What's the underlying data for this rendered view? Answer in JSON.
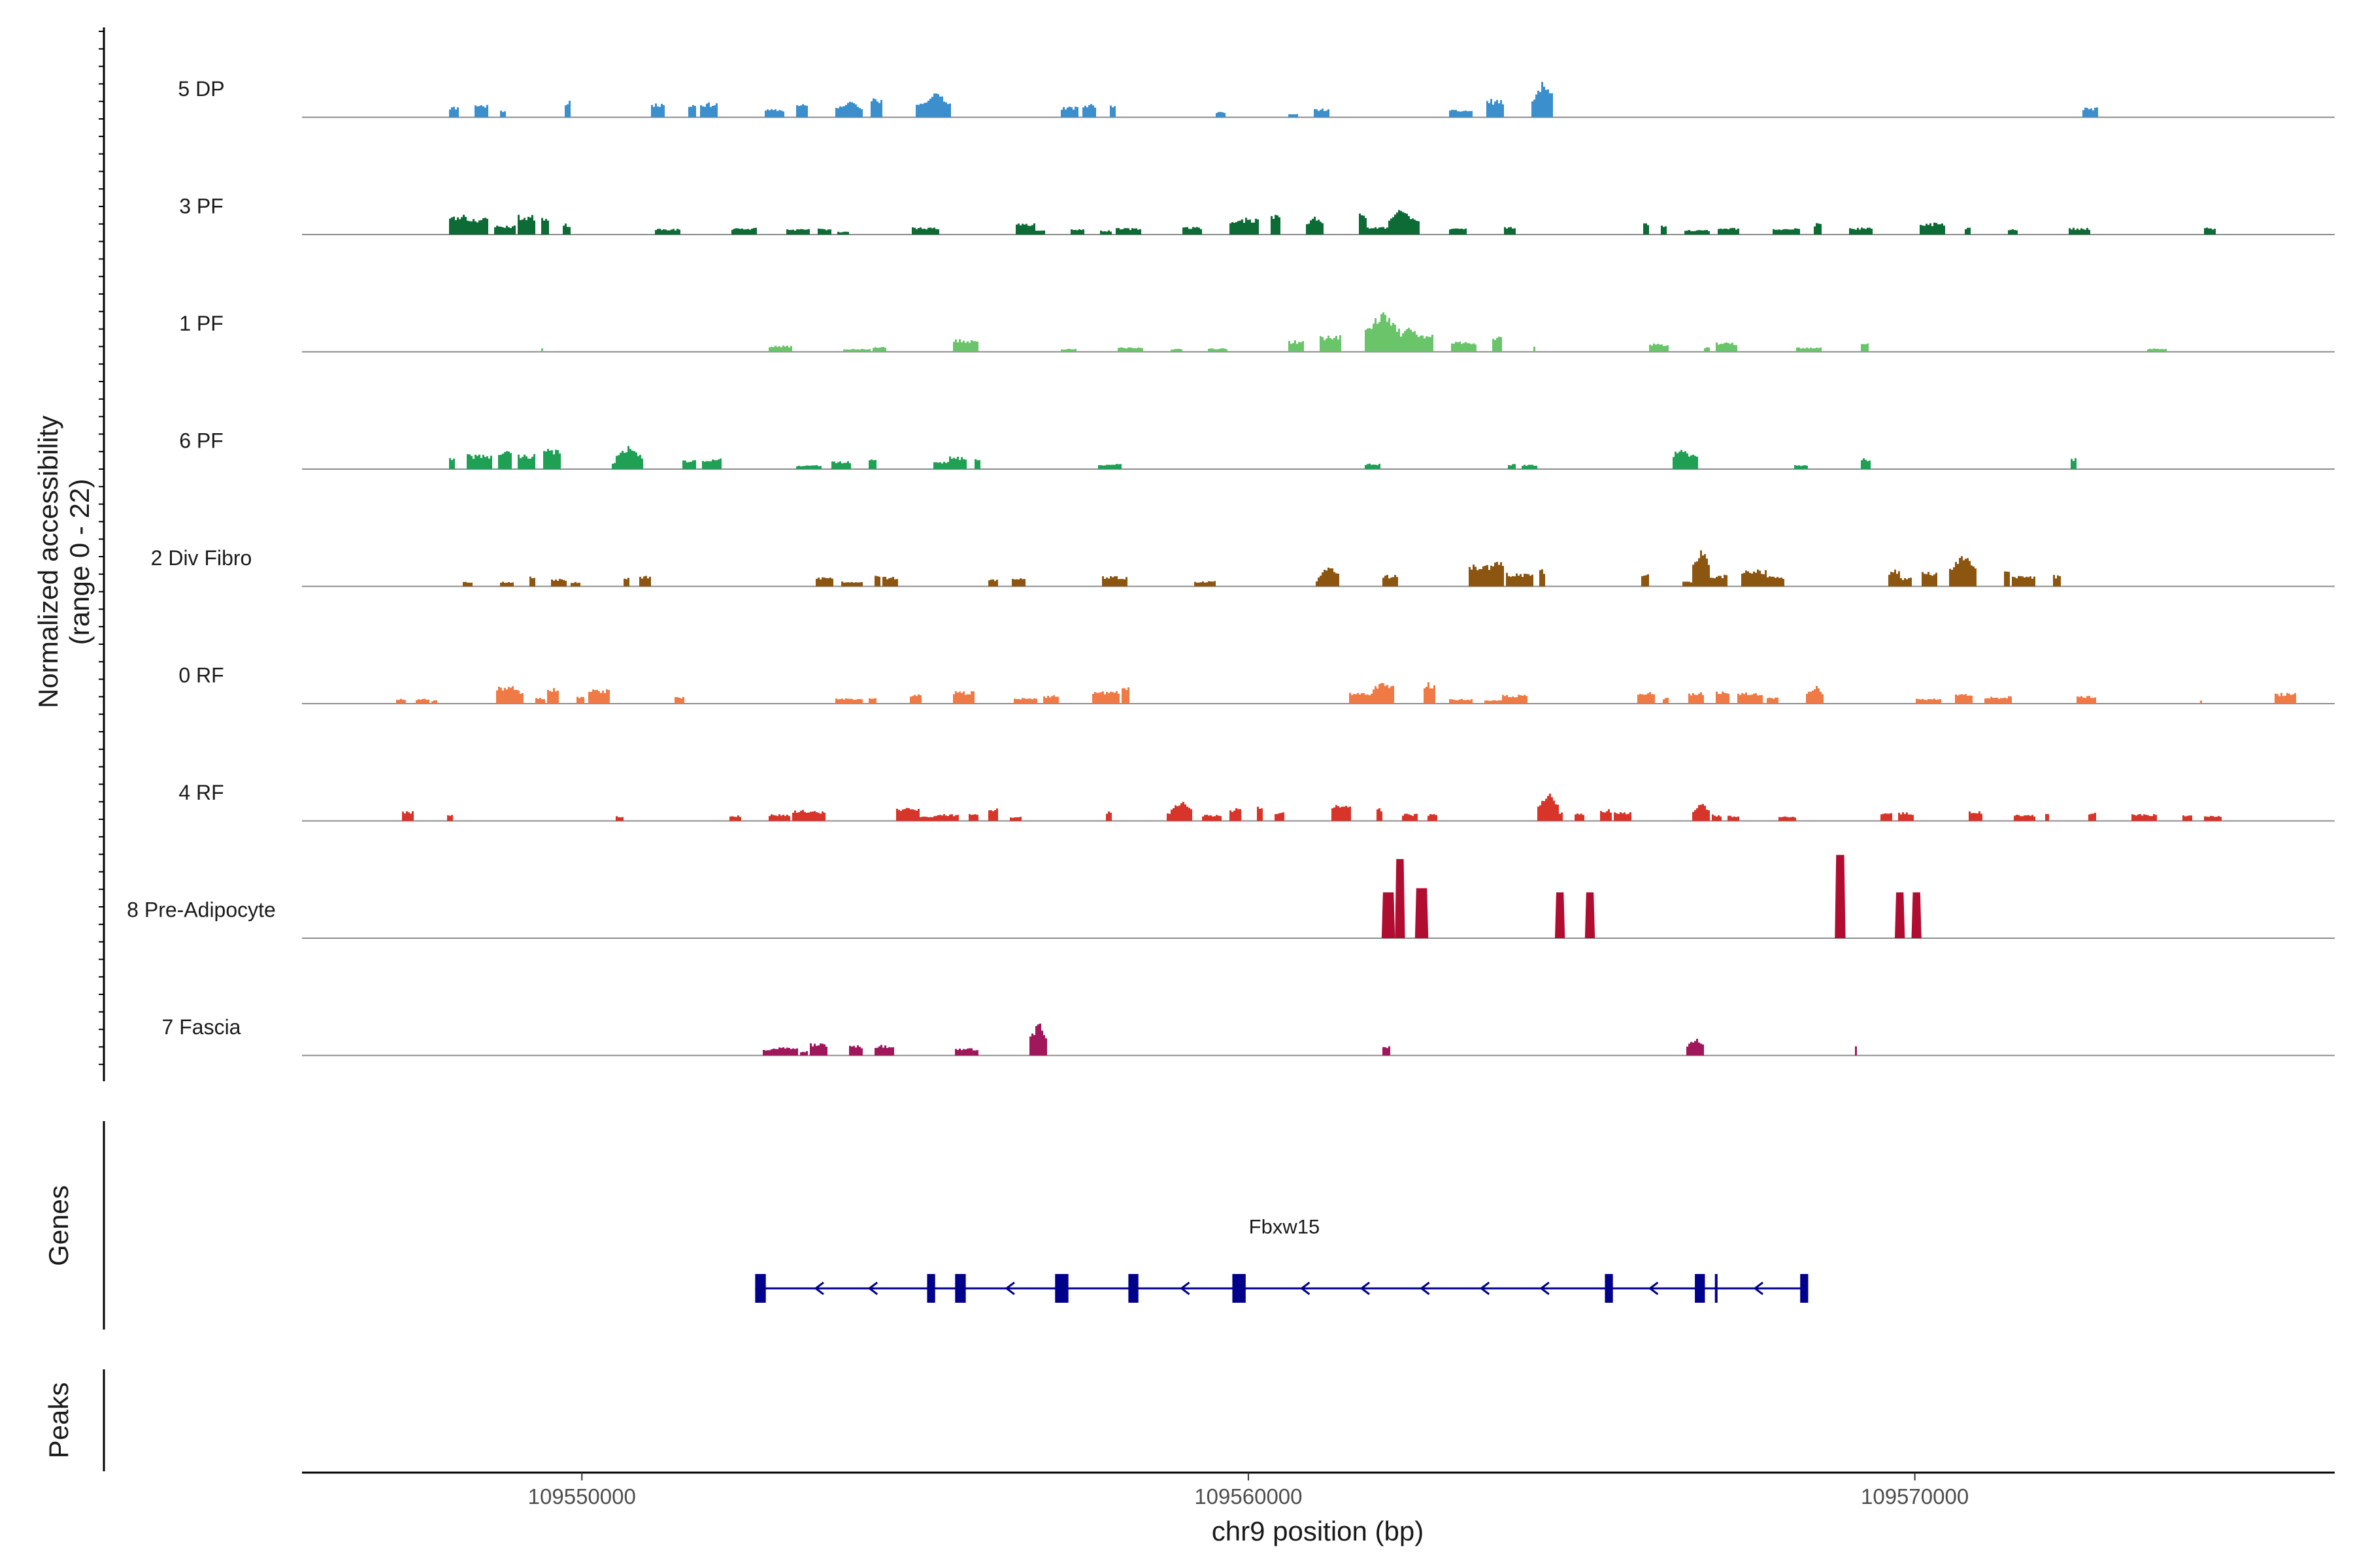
{
  "chart_data": {
    "type": "area",
    "title": "",
    "ylabel": [
      "Normalized accessibility",
      "(range 0 - 22)"
    ],
    "xlabel": "chr9 position (bp)",
    "xlim": [
      109545800,
      109576300
    ],
    "ylim": [
      0,
      22
    ],
    "x_ticks": [
      109550000,
      109560000,
      109570000
    ],
    "x_tick_labels": [
      "109550000",
      "109560000",
      "109570000"
    ],
    "panel_titles": {
      "genes": "Genes",
      "peaks": "Peaks"
    },
    "tracks": [
      {
        "name": "5 DP",
        "color": "#3a8fcc",
        "seed": 11,
        "regions": [
          [
            109548000,
            109554500,
            0.18
          ],
          [
            109555000,
            109556200,
            0.25
          ],
          [
            109557200,
            109558100,
            0.12
          ],
          [
            109559500,
            109561200,
            0.1
          ],
          [
            109563000,
            109565600,
            0.22
          ],
          [
            109567000,
            109567500,
            0.08
          ],
          [
            109572500,
            109573300,
            0.1
          ]
        ],
        "peaks": [
          [
            109554000,
            60,
            0.2
          ],
          [
            109555300,
            70,
            0.3
          ],
          [
            109564400,
            50,
            0.42
          ]
        ]
      },
      {
        "name": "3 PF",
        "color": "#0d6b36",
        "seed": 23,
        "regions": [
          [
            109548000,
            109549500,
            0.24
          ],
          [
            109549700,
            109551500,
            0.1
          ],
          [
            109552000,
            109554000,
            0.08
          ],
          [
            109554200,
            109558000,
            0.12
          ],
          [
            109558000,
            109562800,
            0.2
          ],
          [
            109563000,
            109564000,
            0.1
          ],
          [
            109565500,
            109568600,
            0.12
          ],
          [
            109569000,
            109571700,
            0.14
          ],
          [
            109572300,
            109573500,
            0.1
          ],
          [
            109573800,
            109574500,
            0.08
          ]
        ],
        "peaks": [
          [
            109548200,
            50,
            0.25
          ],
          [
            109562300,
            60,
            0.32
          ],
          [
            109561000,
            40,
            0.22
          ]
        ]
      },
      {
        "name": "1 PF",
        "color": "#6ac46a",
        "seed": 37,
        "regions": [
          [
            109549200,
            109549400,
            0.08
          ],
          [
            109549900,
            109550200,
            0.08
          ],
          [
            109551300,
            109551500,
            0.06
          ],
          [
            109552800,
            109554600,
            0.09
          ],
          [
            109555000,
            109556200,
            0.12
          ],
          [
            109557200,
            109559000,
            0.08
          ],
          [
            109559400,
            109560000,
            0.1
          ],
          [
            109560600,
            109563800,
            0.2
          ],
          [
            109564000,
            109564300,
            0.07
          ],
          [
            109566000,
            109569800,
            0.09
          ],
          [
            109573500,
            109573800,
            0.08
          ]
        ],
        "peaks": [
          [
            109562000,
            80,
            0.48
          ],
          [
            109562400,
            60,
            0.3
          ]
        ]
      },
      {
        "name": "6 PF",
        "color": "#1fa055",
        "seed": 41,
        "regions": [
          [
            109547200,
            109547400,
            0.05
          ],
          [
            109547800,
            109551000,
            0.18
          ],
          [
            109551500,
            109552800,
            0.12
          ],
          [
            109553200,
            109554400,
            0.1
          ],
          [
            109554800,
            109556200,
            0.14
          ],
          [
            109557400,
            109558400,
            0.12
          ],
          [
            109561500,
            109562000,
            0.08
          ],
          [
            109563900,
            109564300,
            0.08
          ],
          [
            109566400,
            109567500,
            0.18
          ],
          [
            109568000,
            109568400,
            0.1
          ],
          [
            109569200,
            109569600,
            0.1
          ],
          [
            109571400,
            109572400,
            0.12
          ],
          [
            109575000,
            109575300,
            0.1
          ]
        ],
        "peaks": [
          [
            109550700,
            60,
            0.28
          ],
          [
            109566500,
            40,
            0.26
          ]
        ]
      },
      {
        "name": "2 Div Fibro",
        "color": "#8c5611",
        "seed": 53,
        "regions": [
          [
            109548200,
            109551000,
            0.12
          ],
          [
            109552800,
            109554800,
            0.1
          ],
          [
            109555500,
            109557600,
            0.08
          ],
          [
            109557800,
            109558600,
            0.14
          ],
          [
            109559200,
            109559600,
            0.06
          ],
          [
            109561000,
            109562800,
            0.18
          ],
          [
            109563000,
            109564600,
            0.22
          ],
          [
            109565500,
            109566200,
            0.12
          ],
          [
            109566500,
            109567200,
            0.14
          ],
          [
            109567400,
            109569400,
            0.16
          ],
          [
            109569600,
            109572200,
            0.18
          ]
        ],
        "peaks": [
          [
            109566800,
            40,
            0.48
          ],
          [
            109570700,
            60,
            0.4
          ],
          [
            109561200,
            50,
            0.24
          ]
        ]
      },
      {
        "name": "0 RF",
        "color": "#f07a45",
        "seed": 67,
        "regions": [
          [
            109547200,
            109547800,
            0.06
          ],
          [
            109548500,
            109550400,
            0.18
          ],
          [
            109550500,
            109551600,
            0.12
          ],
          [
            109553400,
            109557000,
            0.12
          ],
          [
            109557000,
            109558600,
            0.16
          ],
          [
            109560600,
            109562800,
            0.2
          ],
          [
            109563000,
            109564200,
            0.08
          ],
          [
            109565600,
            109567000,
            0.12
          ],
          [
            109567000,
            109569800,
            0.16
          ],
          [
            109570000,
            109572800,
            0.12
          ],
          [
            109574000,
            109574300,
            0.08
          ],
          [
            109575400,
            109575700,
            0.1
          ]
        ],
        "peaks": [
          [
            109548900,
            60,
            0.22
          ],
          [
            109562000,
            50,
            0.26
          ],
          [
            109568500,
            40,
            0.22
          ]
        ]
      },
      {
        "name": "4 RF",
        "color": "#d8352a",
        "seed": 79,
        "regions": [
          [
            109547300,
            109548200,
            0.1
          ],
          [
            109550500,
            109550800,
            0.08
          ],
          [
            109552200,
            109553800,
            0.1
          ],
          [
            109554700,
            109556800,
            0.12
          ],
          [
            109557200,
            109559000,
            0.14
          ],
          [
            109559300,
            109562000,
            0.16
          ],
          [
            109562300,
            109562800,
            0.08
          ],
          [
            109564000,
            109566200,
            0.18
          ],
          [
            109566400,
            109568200,
            0.1
          ],
          [
            109569000,
            109570500,
            0.12
          ],
          [
            109570800,
            109572000,
            0.1
          ],
          [
            109572600,
            109574600,
            0.08
          ]
        ],
        "peaks": [
          [
            109559000,
            50,
            0.26
          ],
          [
            109564500,
            50,
            0.34
          ],
          [
            109566800,
            40,
            0.22
          ]
        ]
      },
      {
        "name": "8 Pre-Adipocyte",
        "color": "#b00d30",
        "seed": 83,
        "bars": [
          [
            109562000,
            109562200,
            0.55
          ],
          [
            109562200,
            109562350,
            0.95
          ],
          [
            109562500,
            109562700,
            0.6
          ],
          [
            109564600,
            109564750,
            0.55
          ],
          [
            109565050,
            109565200,
            0.55
          ],
          [
            109568800,
            109568960,
            1.0
          ],
          [
            109569700,
            109569850,
            0.55
          ],
          [
            109569950,
            109570100,
            0.55
          ]
        ]
      },
      {
        "name": "7 Fascia",
        "color": "#a0175c",
        "seed": 97,
        "regions": [
          [
            109552700,
            109553800,
            0.14
          ],
          [
            109554000,
            109554200,
            0.1
          ],
          [
            109554400,
            109554700,
            0.1
          ],
          [
            109555200,
            109555400,
            0.12
          ],
          [
            109555600,
            109556200,
            0.14
          ],
          [
            109556800,
            109557000,
            0.18
          ],
          [
            109557500,
            109557600,
            0.08
          ],
          [
            109558200,
            109558600,
            0.1
          ],
          [
            109562000,
            109562300,
            0.1
          ],
          [
            109566600,
            109566800,
            0.1
          ],
          [
            109568800,
            109569100,
            0.1
          ],
          [
            109575500,
            109575600,
            0.06
          ]
        ],
        "peaks": [
          [
            109556850,
            40,
            0.4
          ],
          [
            109566700,
            40,
            0.22
          ]
        ]
      }
    ],
    "gene": {
      "name": "Fbxw15",
      "strand": "-",
      "start": 109552600,
      "end": 109568400,
      "color": "#00008b",
      "exons": [
        [
          109552600,
          109552760
        ],
        [
          109555180,
          109555300
        ],
        [
          109555600,
          109555760
        ],
        [
          109557100,
          109557300
        ],
        [
          109558200,
          109558350
        ],
        [
          109559760,
          109559960
        ],
        [
          109565350,
          109565470
        ],
        [
          109566700,
          109566850
        ],
        [
          109567000,
          109567040
        ],
        [
          109568280,
          109568400
        ]
      ]
    }
  }
}
